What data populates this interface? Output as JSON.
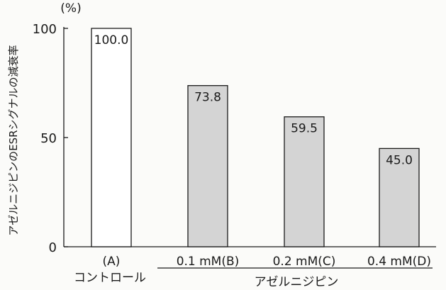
{
  "chart_data": {
    "type": "bar",
    "ylabel": "アゼルニジピンのESRシグナルの減衰率",
    "yunit": "(%)",
    "ylim": [
      0,
      100
    ],
    "yticks": [
      0,
      50,
      100
    ],
    "categories": [
      "(A)",
      "0.1 mM(B)",
      "0.2 mM(C)",
      "0.4 mM(D)"
    ],
    "values": [
      100.0,
      73.8,
      59.5,
      45.0
    ],
    "data_labels": [
      "100.0",
      "73.8",
      "59.5",
      "45.0"
    ],
    "bar_fills": [
      "#ffffff",
      "#d4d4d4",
      "#d4d4d4",
      "#d4d4d4"
    ],
    "group_labels": {
      "control": "コントロール",
      "drug": "アゼルニジピン"
    }
  }
}
